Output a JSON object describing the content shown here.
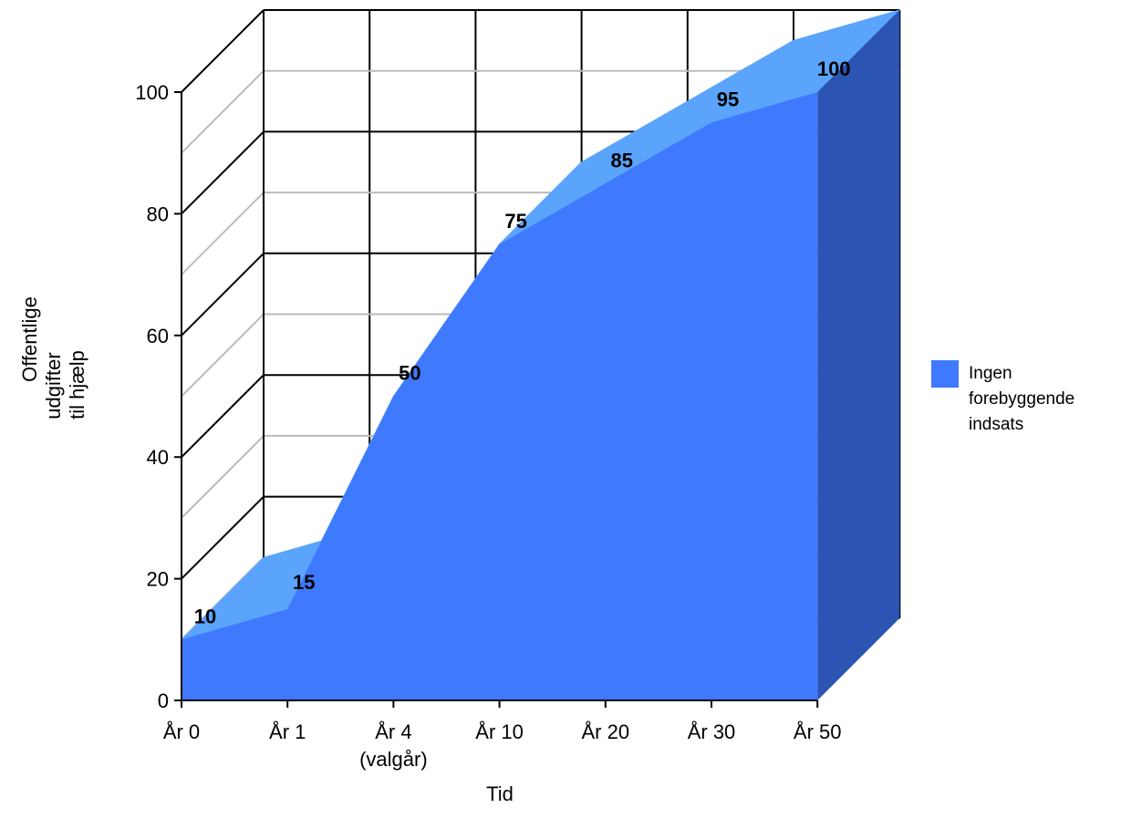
{
  "chart_data": {
    "type": "area",
    "categories": [
      "År 0",
      "År 1",
      "År 4",
      "År 10",
      "År 20",
      "År 30",
      "År 50"
    ],
    "category_sublabels": [
      "",
      "",
      "(valgår)",
      "",
      "",
      "",
      ""
    ],
    "series": [
      {
        "name": "Ingen forebyggende indsats",
        "values": [
          10,
          15,
          50,
          75,
          85,
          95,
          100
        ],
        "color": "#3f7afe"
      }
    ],
    "data_labels": [
      "10",
      "15",
      "50",
      "75",
      "85",
      "95",
      "100"
    ],
    "xlabel": "Tid",
    "ylabel_lines": [
      "Offentlige",
      "udgifter",
      "til hjælp"
    ],
    "ylim": [
      0,
      100
    ],
    "yticks": [
      0,
      20,
      40,
      60,
      80,
      100
    ],
    "ytick_labels": [
      "0",
      "20",
      "40",
      "60",
      "80",
      "100"
    ],
    "legend_lines": [
      "Ingen",
      "forebyggende",
      "indsats"
    ],
    "legend_position": "right",
    "three_d": true,
    "grid": true,
    "colors": {
      "front": "#3f7afe",
      "top": "#5aa4fc",
      "side": "#2c54b2",
      "grid_back": "#000000",
      "grid_side": "#bbbbbb"
    }
  }
}
